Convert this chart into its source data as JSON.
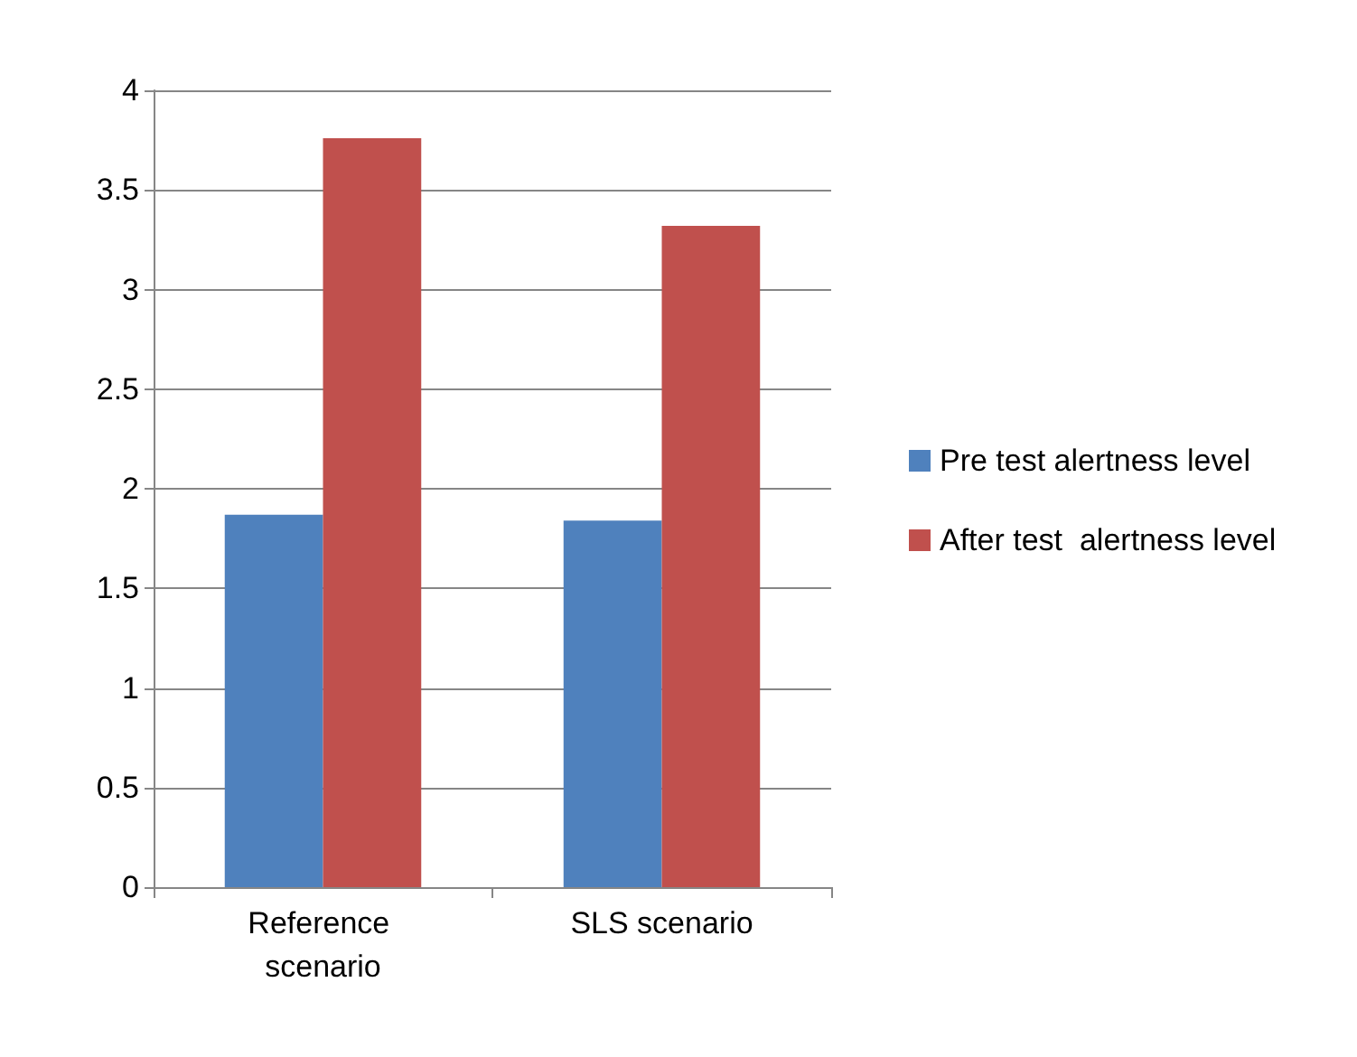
{
  "chart_data": {
    "type": "bar",
    "categories": [
      "Reference scenario",
      "SLS scenario"
    ],
    "series": [
      {
        "name": "Pre test alertness level",
        "color": "#4f81bd",
        "values": [
          1.87,
          1.84
        ]
      },
      {
        "name": "After test  alertness level",
        "color": "#c0504d",
        "values": [
          3.76,
          3.32
        ]
      }
    ],
    "ylim": [
      0,
      4
    ],
    "yticks": [
      0,
      0.5,
      1,
      1.5,
      2,
      2.5,
      3,
      3.5,
      4
    ],
    "grid": "y",
    "legend": "right"
  }
}
